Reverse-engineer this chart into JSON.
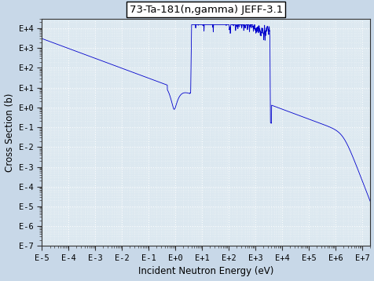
{
  "title": "73-Ta-181(n,gamma) JEFF-3.1",
  "xlabel": "Incident Neutron Energy (eV)",
  "ylabel": "Cross Section (b)",
  "xmin": 1e-05,
  "xmax": 20000000.0,
  "ymin": 1e-07,
  "ymax": 30000.0,
  "line_color": "#0000cc",
  "bg_color": "#c8d8e8",
  "plot_bg_color": "#dce8f0",
  "grid_color": "#ffffff",
  "title_box_color": "#ffffff",
  "xtick_labels": [
    "E-5",
    "E-4",
    "E-3",
    "E-2",
    "E-1",
    "E+0",
    "E+1",
    "E+2",
    "E+3",
    "E+4",
    "E+5",
    "E+6",
    "E+7"
  ],
  "xtick_values": [
    1e-05,
    0.0001,
    0.001,
    0.01,
    0.1,
    1.0,
    10.0,
    100.0,
    1000.0,
    10000.0,
    100000.0,
    1000000.0,
    10000000.0
  ],
  "ytick_labels": [
    "E-7",
    "E-6",
    "E-5",
    "E-4",
    "E-3",
    "E-2",
    "E-1",
    "E+0",
    "E+1",
    "E+2",
    "E+3",
    "E+4"
  ],
  "ytick_values": [
    1e-07,
    1e-06,
    1e-05,
    0.0001,
    0.001,
    0.01,
    0.1,
    1.0,
    10.0,
    100.0,
    1000.0,
    10000.0
  ]
}
